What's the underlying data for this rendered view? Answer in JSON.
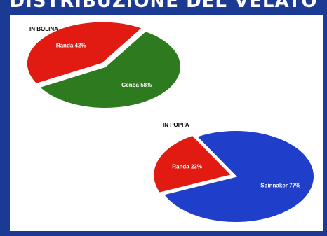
{
  "page_title": "DISTRIBUZIONE DEL VELATO",
  "chart_data": [
    {
      "type": "pie",
      "title": "IN BOLINA",
      "slices": [
        {
          "label": "Genoa 58%",
          "value": 58,
          "color": "#2e7a1e"
        },
        {
          "label": "Randa 42%",
          "value": 42,
          "color": "#e11b12"
        }
      ]
    },
    {
      "type": "pie",
      "title": "IN POPPA",
      "slices": [
        {
          "label": "Spinnaker 77%",
          "value": 77,
          "color": "#1f3ec9"
        },
        {
          "label": "Randa 23%",
          "value": 23,
          "color": "#e11b12"
        }
      ]
    }
  ]
}
